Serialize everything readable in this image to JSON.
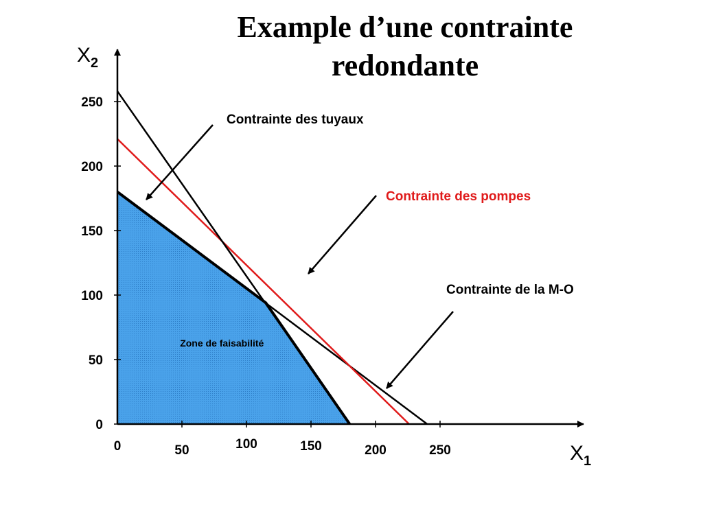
{
  "title_line1": "Example d’une contrainte",
  "title_line2": "redondante",
  "colors": {
    "feasible_fill": "#4aa2ea",
    "red_line": "#e01b1b",
    "black": "#000000"
  },
  "chart_data": {
    "type": "line",
    "xlabel": "X",
    "xlabel_sub": "1",
    "ylabel": "X",
    "ylabel_sub": "2",
    "xlim": [
      0,
      270
    ],
    "ylim": [
      0,
      260
    ],
    "x_ticks": [
      "0",
      "50",
      "100",
      "150",
      "200",
      "250"
    ],
    "y_ticks": [
      "0",
      "50",
      "100",
      "150",
      "200",
      "250"
    ],
    "series": [
      {
        "name": "Contrainte des tuyaux",
        "color": "#000000",
        "points": [
          [
            0,
            180
          ],
          [
            240,
            0
          ]
        ]
      },
      {
        "name": "Contrainte des pompes",
        "color": "#e01b1b",
        "points": [
          [
            0,
            221
          ],
          [
            226,
            0
          ]
        ]
      },
      {
        "name": "Contrainte de la M-O",
        "color": "#000000",
        "points": [
          [
            0,
            258
          ],
          [
            180,
            0
          ]
        ]
      }
    ],
    "feasible_region": {
      "label": "Zone de faisabilité",
      "points": [
        [
          0,
          0
        ],
        [
          0,
          180
        ],
        [
          115,
          94
        ],
        [
          180,
          0
        ]
      ]
    },
    "annotations": [
      {
        "text": "Contrainte des tuyaux",
        "color": "#000000"
      },
      {
        "text": "Contrainte des pompes",
        "color": "#e01b1b"
      },
      {
        "text": "Contrainte de la M-O",
        "color": "#000000"
      }
    ]
  }
}
